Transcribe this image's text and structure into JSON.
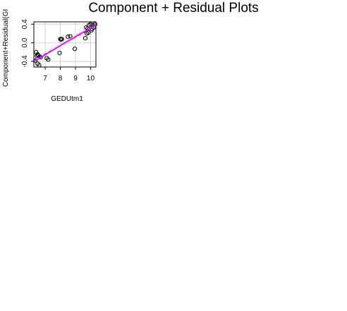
{
  "chart_data": {
    "type": "scatter",
    "title": "Component + Residual Plots",
    "xlabel": "GEDUtm1",
    "ylabel": "Component+Residual(GI",
    "xlim": [
      6.25,
      10.35
    ],
    "ylim": [
      -0.52,
      0.45
    ],
    "xticks": [
      7,
      8,
      9,
      10
    ],
    "yticks": [
      -0.4,
      0.0,
      0.4
    ],
    "ytick_labels": [
      "-0.4",
      "0.0",
      "0.4"
    ],
    "grid": true,
    "colors": {
      "points": "#000000",
      "fit_line": "#1f3fff",
      "smooth_line": "#ff00ff",
      "grid": "#d3d3d3"
    },
    "points": {
      "x": [
        6.35,
        6.4,
        6.45,
        6.5,
        6.5,
        6.55,
        6.6,
        6.7,
        7.1,
        7.2,
        7.95,
        8.0,
        8.05,
        8.1,
        8.5,
        8.65,
        8.95,
        9.65,
        9.7,
        9.75,
        9.8,
        9.85,
        9.9,
        10.0,
        10.05,
        10.1,
        10.15,
        10.2,
        10.3
      ],
      "y": [
        -0.38,
        -0.2,
        -0.28,
        -0.25,
        -0.45,
        -0.27,
        -0.48,
        -0.31,
        -0.33,
        -0.36,
        -0.22,
        0.08,
        0.07,
        0.08,
        0.13,
        0.14,
        -0.13,
        0.1,
        0.33,
        0.2,
        0.31,
        0.22,
        0.38,
        0.4,
        0.27,
        0.3,
        0.38,
        0.33,
        0.4
      ]
    },
    "fit_line": {
      "x": [
        6.25,
        10.35
      ],
      "y": [
        -0.38,
        0.37
      ]
    },
    "smooth_line": {
      "x": [
        6.3,
        6.8,
        7.3,
        7.8,
        8.3,
        8.8,
        9.3,
        9.8,
        10.3
      ],
      "y": [
        -0.39,
        -0.3,
        -0.2,
        -0.1,
        0.0,
        0.09,
        0.19,
        0.28,
        0.37
      ]
    }
  }
}
